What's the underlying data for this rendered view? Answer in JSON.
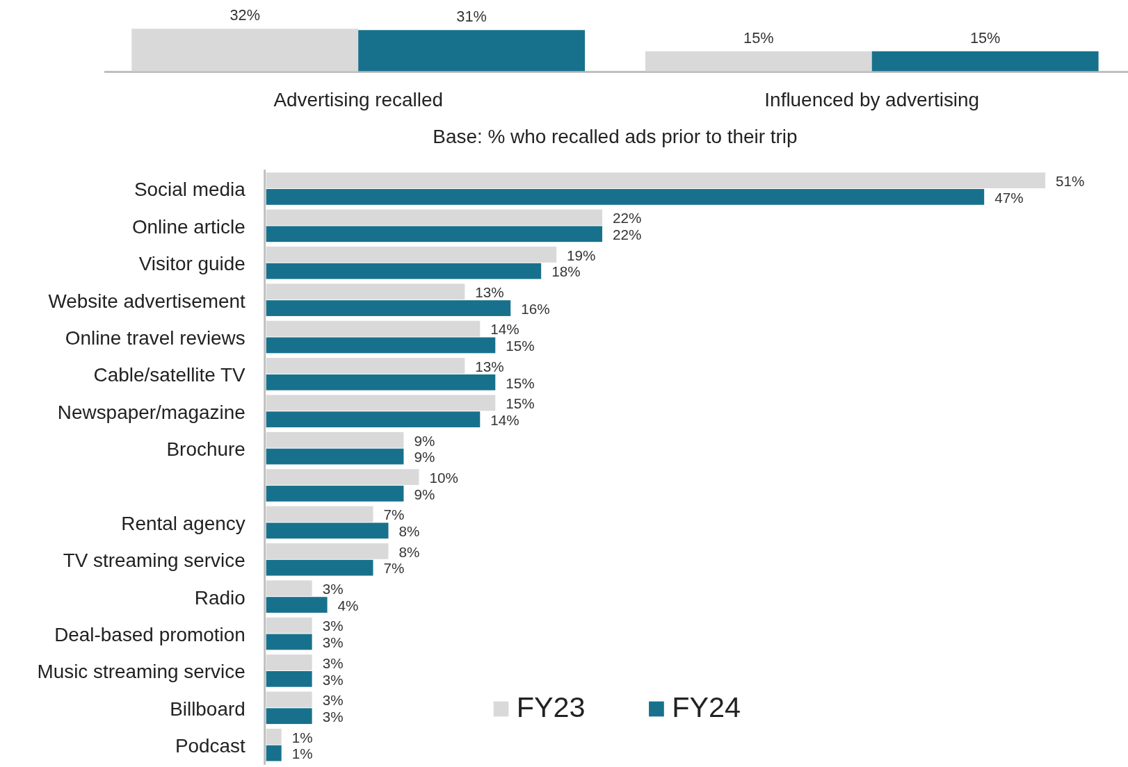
{
  "chart_data": [
    {
      "type": "bar",
      "categories": [
        "Advertising recalled",
        "Influenced by advertising"
      ],
      "series": [
        {
          "color": "#d9d9d9",
          "values": [
            32,
            15
          ],
          "value_labels": [
            "32%",
            "15%"
          ]
        },
        {
          "color": "#18718c",
          "values": [
            31,
            15
          ],
          "value_labels": [
            "31%",
            "15%"
          ]
        }
      ],
      "legend": false
    },
    {
      "type": "bar",
      "orientation": "horizontal",
      "subtitle": "Base: % who recalled ads prior to their trip",
      "categories": [
        "Social media",
        "Online article",
        "Visitor guide",
        "Website advertisement",
        "Online travel reviews",
        "Cable/satellite TV",
        "Newspaper/magazine",
        "Brochure",
        null,
        "Rental agency",
        "TV streaming service",
        "Radio",
        "Deal-based promotion",
        "Music streaming service",
        "Billboard",
        "Podcast"
      ],
      "series": [
        {
          "name": "FY23",
          "color": "#d9d9d9",
          "values": [
            51,
            22,
            19,
            13,
            14,
            13,
            15,
            9,
            10,
            7,
            8,
            3,
            3,
            3,
            3,
            1
          ],
          "value_labels": [
            "51%",
            "22%",
            "19%",
            "13%",
            "14%",
            "13%",
            "15%",
            "9%",
            "10%",
            "7%",
            "8%",
            "3%",
            "3%",
            "3%",
            "3%",
            "1%"
          ]
        },
        {
          "name": "FY24",
          "color": "#18718c",
          "values": [
            47,
            22,
            18,
            16,
            15,
            15,
            14,
            9,
            9,
            8,
            7,
            4,
            3,
            3,
            3,
            1
          ],
          "value_labels": [
            "47%",
            "22%",
            "18%",
            "16%",
            "15%",
            "15%",
            "14%",
            "9%",
            "9%",
            "8%",
            "7%",
            "4%",
            "3%",
            "3%",
            "3%",
            "1%"
          ]
        }
      ],
      "legend": "bottom"
    }
  ]
}
